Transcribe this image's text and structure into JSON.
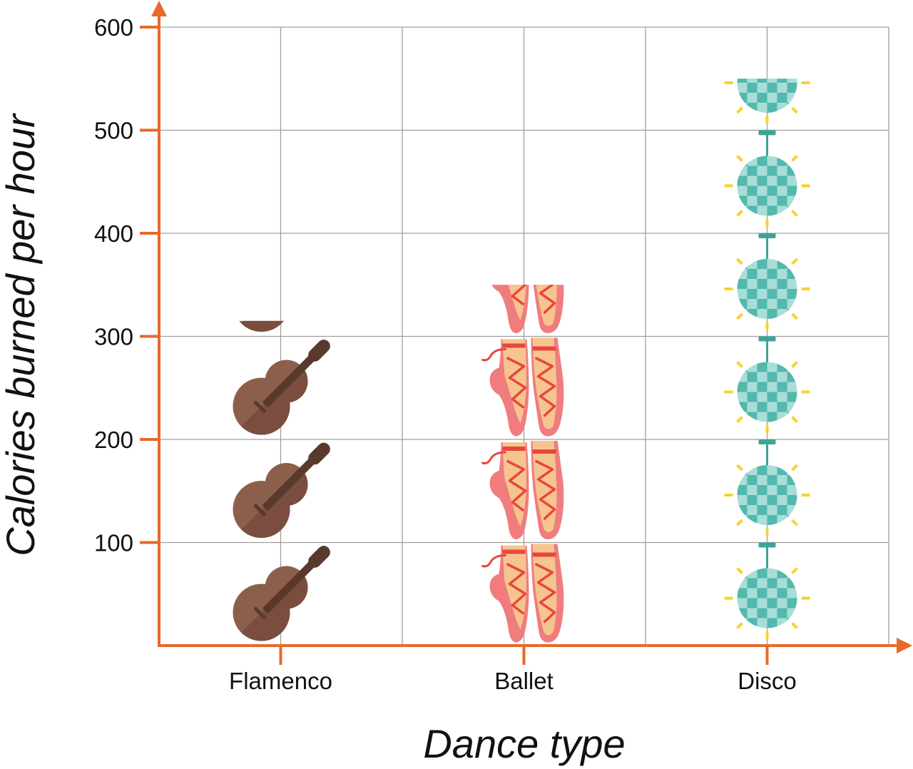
{
  "chart_data": {
    "type": "bar",
    "categories": [
      "Flamenco",
      "Ballet",
      "Disco"
    ],
    "values": [
      315,
      350,
      550
    ],
    "icons": [
      "guitar-icon",
      "ballet-shoes-icon",
      "disco-ball-icon"
    ],
    "xlabel": "Dance type",
    "ylabel": "Calories burned per hour",
    "yticks": [
      100,
      200,
      300,
      400,
      500,
      600
    ],
    "ylim": [
      0,
      600
    ],
    "grid": true,
    "colors": {
      "axis": "#E8692B"
    }
  }
}
